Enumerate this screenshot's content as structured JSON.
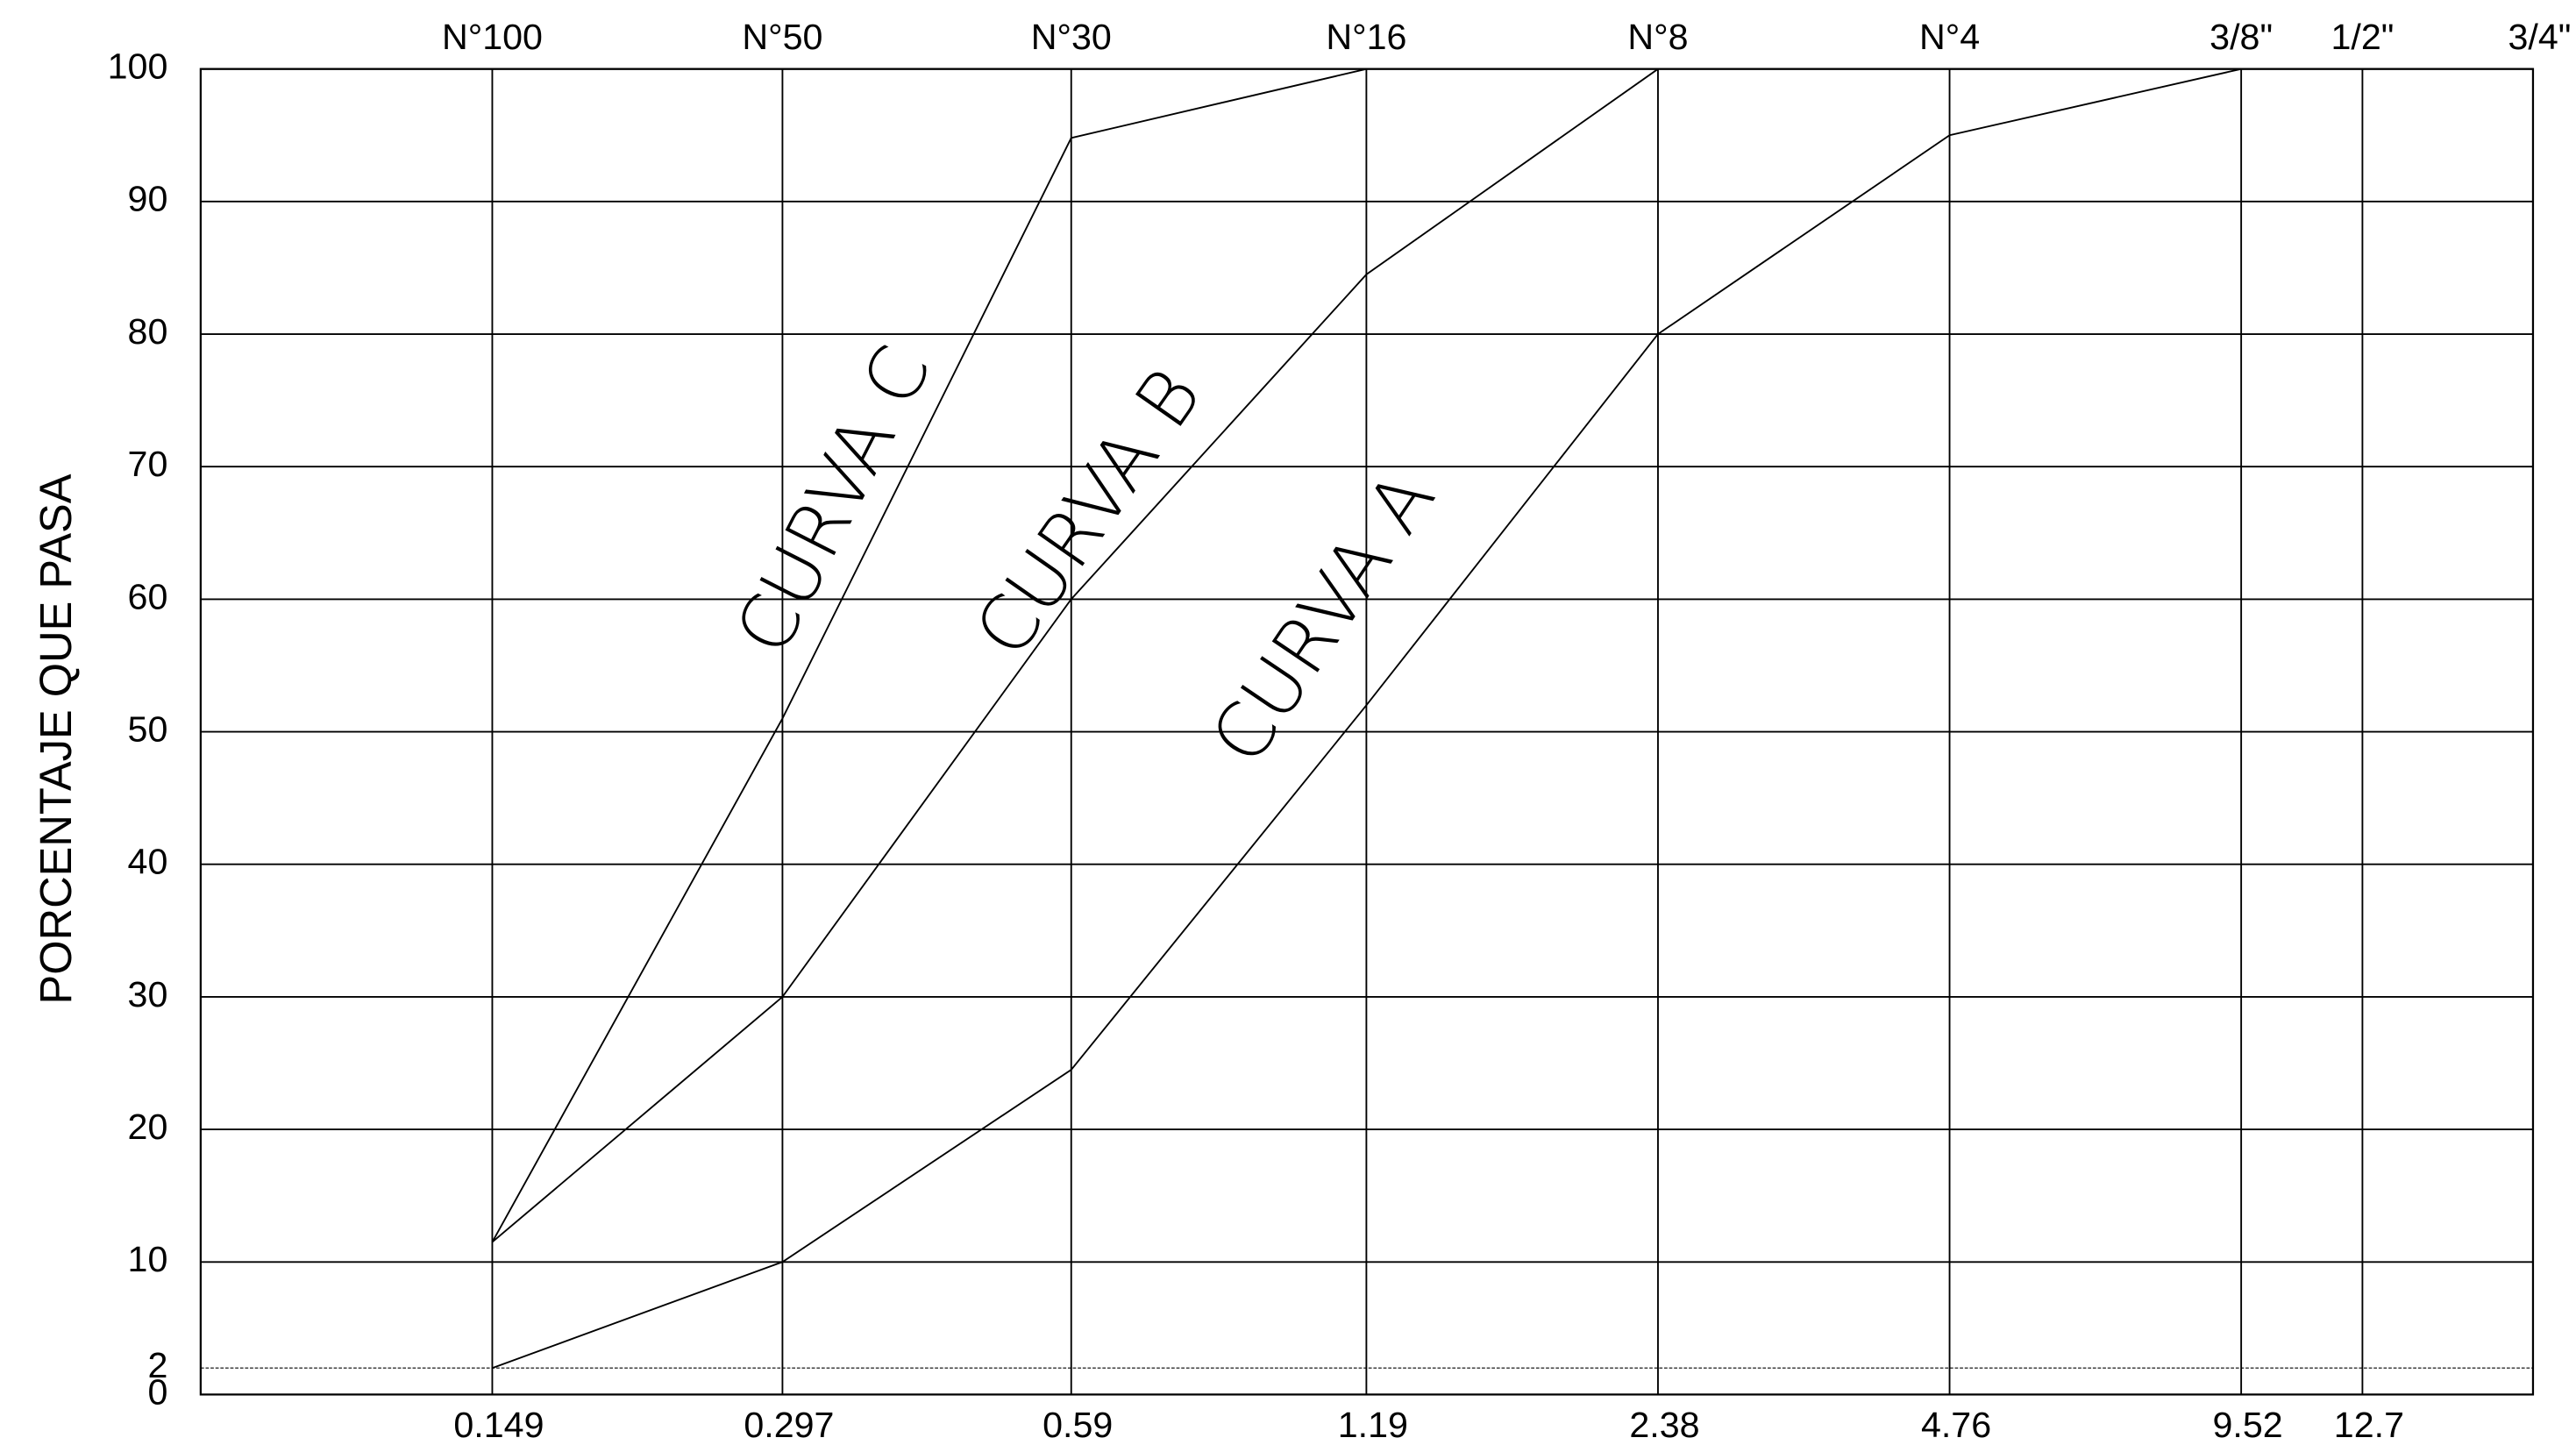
{
  "chart_data": {
    "type": "line",
    "ylabel": "PORCENTAJE QUE PASA",
    "x": [
      0.149,
      0.297,
      0.59,
      1.19,
      2.38,
      4.76,
      9.52
    ],
    "series": [
      {
        "name": "CURVA A",
        "color": "#000000",
        "values": [
          2,
          10,
          24.5,
          52,
          80,
          95,
          100
        ]
      },
      {
        "name": "CURVA B",
        "color": "#000000",
        "values": [
          11.5,
          30,
          60,
          84.5,
          100,
          null,
          null
        ]
      },
      {
        "name": "CURVA C",
        "color": "#000000",
        "values": [
          11.5,
          51,
          94.8,
          100,
          null,
          null,
          null
        ]
      }
    ],
    "xscale": "log",
    "xlim": [
      0.0745,
      19.05
    ],
    "xticks": [
      0.149,
      0.297,
      0.59,
      1.19,
      2.38,
      4.76,
      9.52,
      12.7
    ],
    "top_ticks": [
      {
        "value": 0.149,
        "label": "N°100"
      },
      {
        "value": 0.297,
        "label": "N°50"
      },
      {
        "value": 0.59,
        "label": "N°30"
      },
      {
        "value": 1.19,
        "label": "N°16"
      },
      {
        "value": 2.38,
        "label": "N°8"
      },
      {
        "value": 4.76,
        "label": "N°4"
      },
      {
        "value": 9.52,
        "label": "3/8\""
      },
      {
        "value": 12.7,
        "label": "1/2\""
      },
      {
        "value": 19.05,
        "label": "3/4\""
      }
    ],
    "ylim": [
      0,
      100
    ],
    "yticks": [
      0,
      2,
      10,
      20,
      30,
      40,
      50,
      60,
      70,
      80,
      90,
      100
    ],
    "grid": true
  }
}
